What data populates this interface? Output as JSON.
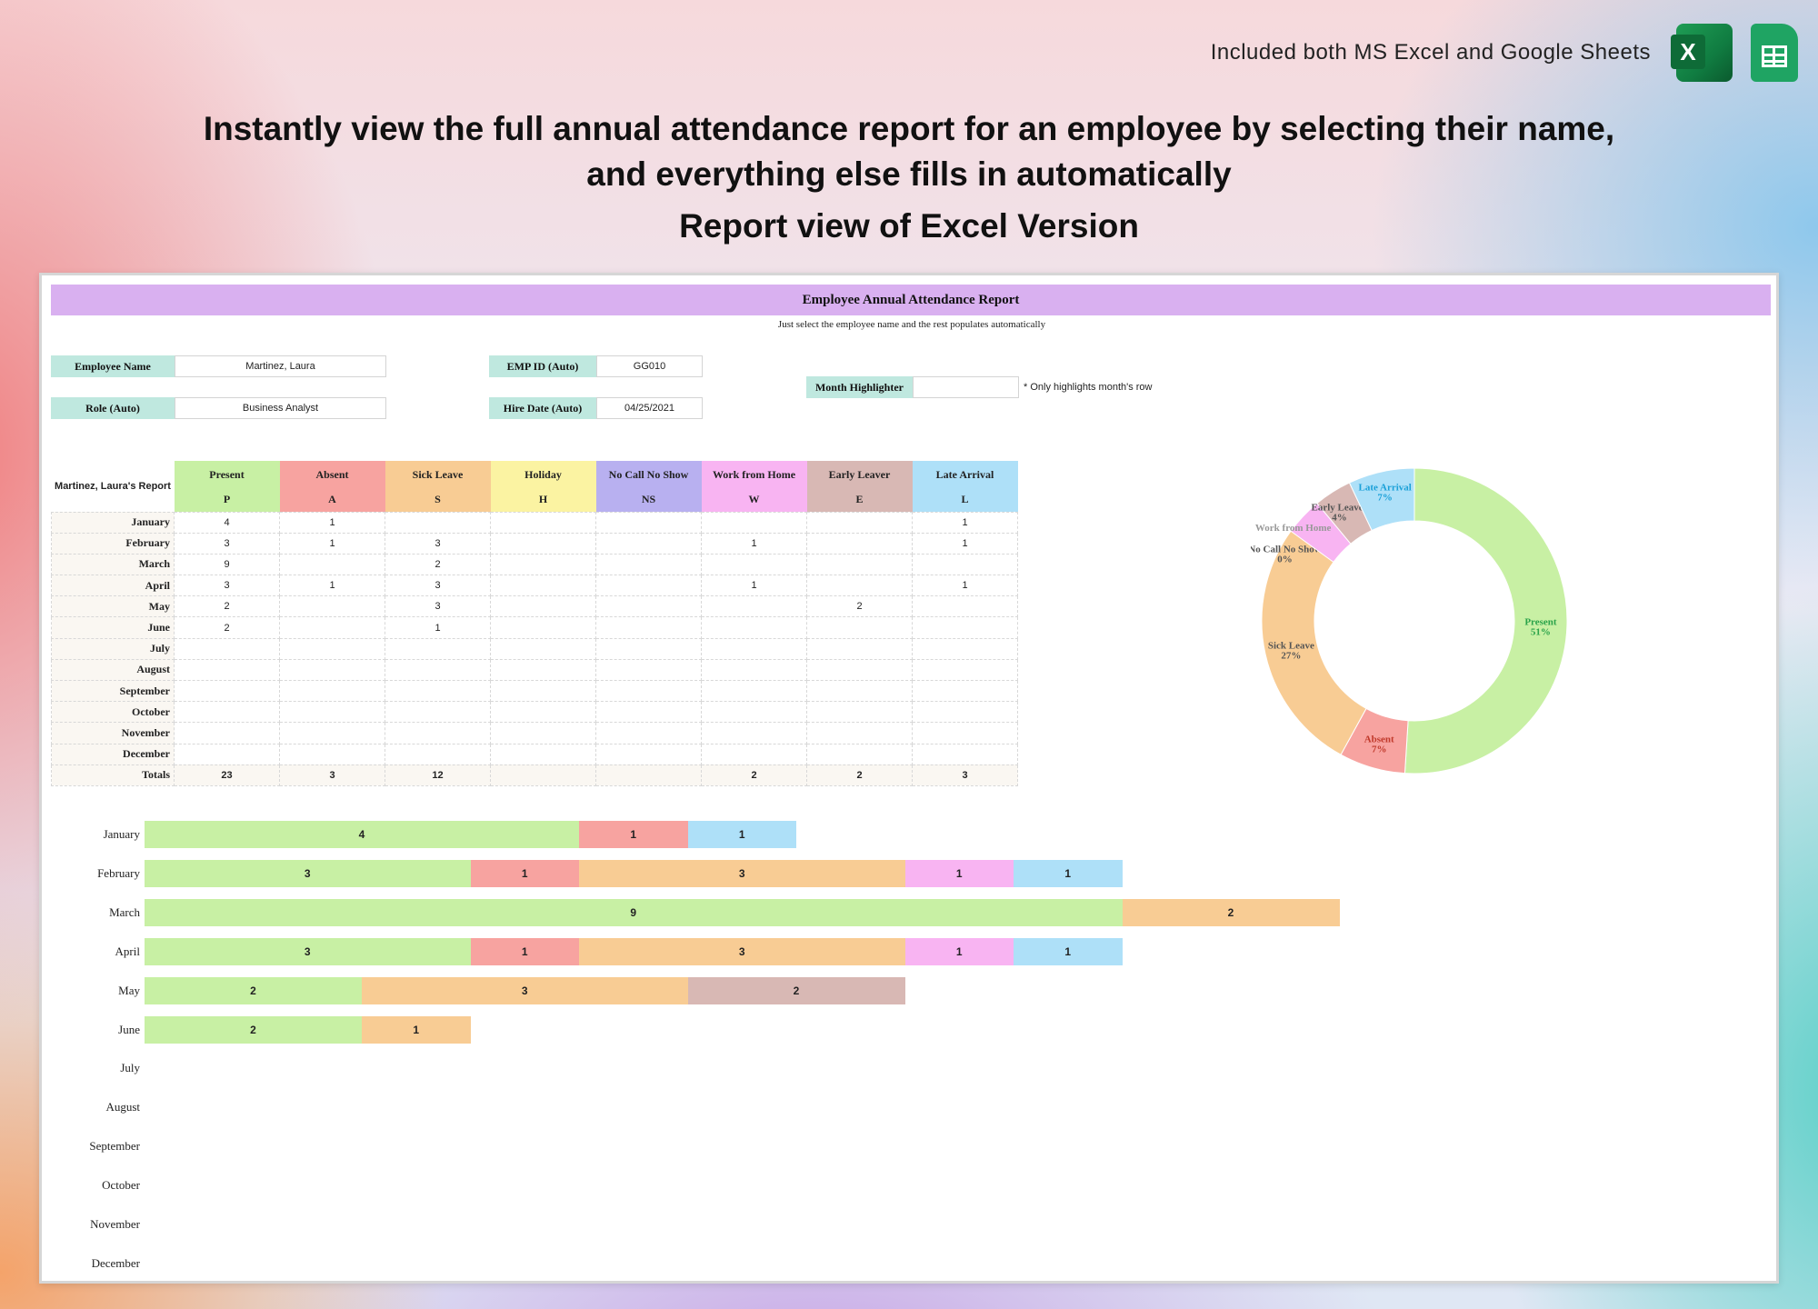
{
  "header": {
    "note": "Included both MS Excel and Google Sheets",
    "excel_letter": "X",
    "headline_line1": "Instantly view the full annual attendance report for an employee by selecting their name,",
    "headline_line2": "and everything else fills in automatically",
    "subhead": "Report view of Excel Version",
    "icons": [
      "excel-icon",
      "google-sheets-icon"
    ]
  },
  "report": {
    "title": "Employee Annual Attendance Report",
    "subtitle": "Just select the employee name and the rest populates automatically",
    "fields": {
      "employee_name_label": "Employee Name",
      "employee_name_value": "Martinez, Laura",
      "role_label": "Role (Auto)",
      "role_value": "Business Analyst",
      "emp_id_label": "EMP ID (Auto)",
      "emp_id_value": "GG010",
      "hire_date_label": "Hire Date (Auto)",
      "hire_date_value": "04/25/2021",
      "month_highlighter_label": "Month Highlighter",
      "month_highlighter_value": "",
      "month_highlighter_note": "* Only highlights month's row"
    },
    "table": {
      "corner": "Martinez, Laura's Report",
      "columns": [
        {
          "name": "Present",
          "code": "P",
          "color": "#c8f0a4"
        },
        {
          "name": "Absent",
          "code": "A",
          "color": "#f7a3a0"
        },
        {
          "name": "Sick Leave",
          "code": "S",
          "color": "#f8cc94"
        },
        {
          "name": "Holiday",
          "code": "H",
          "color": "#fbf3a2"
        },
        {
          "name": "No Call No Show",
          "code": "NS",
          "color": "#b8b0f0"
        },
        {
          "name": "Work from Home",
          "code": "W",
          "color": "#f8b4f2"
        },
        {
          "name": "Early Leaver",
          "code": "E",
          "color": "#d8b8b4"
        },
        {
          "name": "Late Arrival",
          "code": "L",
          "color": "#aee0f8"
        }
      ],
      "rows": [
        {
          "month": "January",
          "cells": [
            "4",
            "1",
            "",
            "",
            "",
            "",
            "",
            "1"
          ]
        },
        {
          "month": "February",
          "cells": [
            "3",
            "1",
            "3",
            "",
            "",
            "1",
            "",
            "1"
          ]
        },
        {
          "month": "March",
          "cells": [
            "9",
            "",
            "2",
            "",
            "",
            "",
            "",
            ""
          ]
        },
        {
          "month": "April",
          "cells": [
            "3",
            "1",
            "3",
            "",
            "",
            "1",
            "",
            "1"
          ]
        },
        {
          "month": "May",
          "cells": [
            "2",
            "",
            "3",
            "",
            "",
            "",
            "2",
            ""
          ]
        },
        {
          "month": "June",
          "cells": [
            "2",
            "",
            "1",
            "",
            "",
            "",
            "",
            ""
          ]
        },
        {
          "month": "July",
          "cells": [
            "",
            "",
            "",
            "",
            "",
            "",
            "",
            ""
          ]
        },
        {
          "month": "August",
          "cells": [
            "",
            "",
            "",
            "",
            "",
            "",
            "",
            ""
          ]
        },
        {
          "month": "September",
          "cells": [
            "",
            "",
            "",
            "",
            "",
            "",
            "",
            ""
          ]
        },
        {
          "month": "October",
          "cells": [
            "",
            "",
            "",
            "",
            "",
            "",
            "",
            ""
          ]
        },
        {
          "month": "November",
          "cells": [
            "",
            "",
            "",
            "",
            "",
            "",
            "",
            ""
          ]
        },
        {
          "month": "December",
          "cells": [
            "",
            "",
            "",
            "",
            "",
            "",
            "",
            ""
          ]
        }
      ],
      "totals_label": "Totals",
      "totals": [
        "23",
        "3",
        "12",
        "",
        "",
        "2",
        "2",
        "3"
      ]
    }
  },
  "chart_data": [
    {
      "type": "pie",
      "variant": "donut",
      "slices": [
        {
          "label": "Present",
          "value": 51,
          "display": "51%",
          "color": "#c8f0a4",
          "text_color": "#2aa34a"
        },
        {
          "label": "Absent",
          "value": 7,
          "display": "7%",
          "color": "#f7a3a0",
          "text_color": "#c0392b"
        },
        {
          "label": "Sick Leave",
          "value": 27,
          "display": "27%",
          "color": "#f8cc94",
          "text_color": "#555555"
        },
        {
          "label": "No Call No Show",
          "value": 0,
          "display": "0%",
          "color": "#b8b0f0",
          "text_color": "#555555"
        },
        {
          "label": "Work from Home",
          "value": 4,
          "display": "",
          "color": "#f8b4f2",
          "text_color": "#999999"
        },
        {
          "label": "Early Leaver",
          "value": 4,
          "display": "4%",
          "color": "#d8b8b4",
          "text_color": "#555555"
        },
        {
          "label": "Late Arrival",
          "value": 7,
          "display": "7%",
          "color": "#aee0f8",
          "text_color": "#1aa0d8"
        }
      ]
    },
    {
      "type": "bar",
      "orientation": "horizontal",
      "stacked": true,
      "categories": [
        "January",
        "February",
        "March",
        "April",
        "May",
        "June",
        "July",
        "August",
        "September",
        "October",
        "November",
        "December"
      ],
      "series": [
        {
          "name": "Present",
          "color": "#c8f0a4",
          "values": [
            4,
            3,
            9,
            3,
            2,
            2,
            0,
            0,
            0,
            0,
            0,
            0
          ]
        },
        {
          "name": "Absent",
          "color": "#f7a3a0",
          "values": [
            1,
            1,
            0,
            1,
            0,
            0,
            0,
            0,
            0,
            0,
            0,
            0
          ]
        },
        {
          "name": "Sick Leave",
          "color": "#f8cc94",
          "values": [
            0,
            3,
            2,
            3,
            3,
            1,
            0,
            0,
            0,
            0,
            0,
            0
          ]
        },
        {
          "name": "Holiday",
          "color": "#fbf3a2",
          "values": [
            0,
            0,
            0,
            0,
            0,
            0,
            0,
            0,
            0,
            0,
            0,
            0
          ]
        },
        {
          "name": "No Call No Show",
          "color": "#b8b0f0",
          "values": [
            0,
            0,
            0,
            0,
            0,
            0,
            0,
            0,
            0,
            0,
            0,
            0
          ]
        },
        {
          "name": "Work from Home",
          "color": "#f8b4f2",
          "values": [
            0,
            1,
            0,
            1,
            0,
            0,
            0,
            0,
            0,
            0,
            0,
            0
          ]
        },
        {
          "name": "Early Leaver",
          "color": "#d8b8b4",
          "values": [
            0,
            0,
            0,
            0,
            2,
            0,
            0,
            0,
            0,
            0,
            0,
            0
          ]
        },
        {
          "name": "Late Arrival",
          "color": "#aee0f8",
          "values": [
            1,
            1,
            0,
            1,
            0,
            0,
            0,
            0,
            0,
            0,
            0,
            0
          ]
        }
      ]
    }
  ]
}
